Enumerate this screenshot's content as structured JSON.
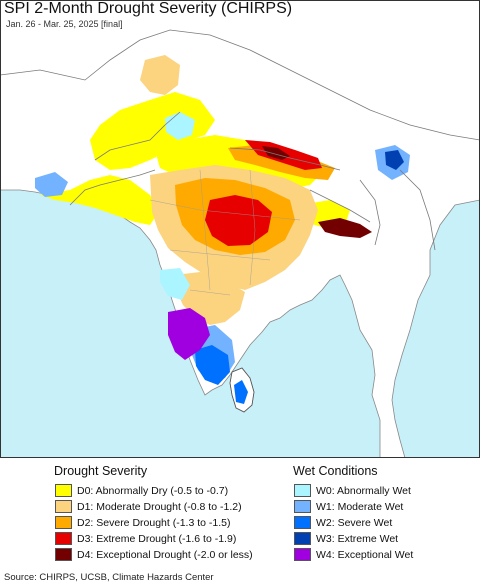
{
  "title": "SPI 2-Month Drought Severity (CHIRPS)",
  "subtitle": "Jan. 26 - Mar. 25, 2025 [final]",
  "colors": {
    "sea": "#c8f0f8",
    "land_neutral": "#ffffff",
    "border": "#7a7a7a",
    "frame": "#333333"
  },
  "legend": {
    "drought_heading": "Drought Severity",
    "wet_heading": "Wet Conditions",
    "drought": [
      {
        "code": "D0",
        "label": "D0: Abnormally Dry (-0.5 to -0.7)",
        "color": "#ffff00"
      },
      {
        "code": "D1",
        "label": "D1: Moderate Drought (-0.8 to -1.2)",
        "color": "#fcd37f"
      },
      {
        "code": "D2",
        "label": "D2: Severe Drought (-1.3 to -1.5)",
        "color": "#ffaa00"
      },
      {
        "code": "D3",
        "label": "D3: Extreme Drought (-1.6 to -1.9)",
        "color": "#e60000"
      },
      {
        "code": "D4",
        "label": "D4: Exceptional Drought (-2.0 or less)",
        "color": "#730000"
      }
    ],
    "wet": [
      {
        "code": "W0",
        "label": "W0: Abnormally Wet",
        "color": "#aaf5ff"
      },
      {
        "code": "W1",
        "label": "W1: Moderate Wet",
        "color": "#73b2ff"
      },
      {
        "code": "W2",
        "label": "W2: Severe Wet",
        "color": "#0070ff"
      },
      {
        "code": "W3",
        "label": "W3: Extreme Wet",
        "color": "#0040b0"
      },
      {
        "code": "W4",
        "label": "W4: Exceptional Wet",
        "color": "#a000e0"
      }
    ]
  },
  "source": "Source: CHIRPS, UCSB, Climate Hazards Center"
}
